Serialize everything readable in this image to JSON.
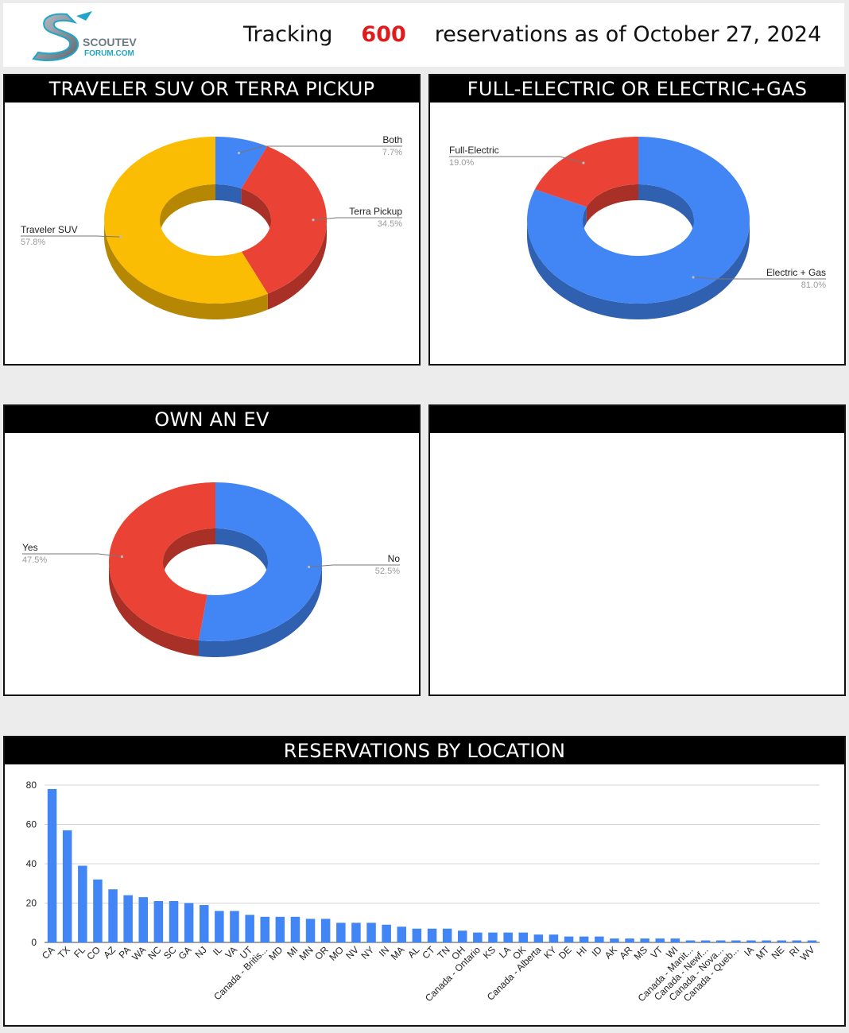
{
  "header": {
    "logo_text_top": "SCOUTEV",
    "logo_text_bottom": "FORUM.COM",
    "prefix": "Tracking",
    "count": "600",
    "suffix": "reservations as of October 27, 2024"
  },
  "colors": {
    "blue": "#4285f4",
    "red": "#ea4335",
    "yellow": "#fbbc04"
  },
  "chart_data": [
    {
      "type": "pie",
      "title": "TRAVELER SUV OR TERRA PICKUP",
      "slices": [
        {
          "label": "Both",
          "value": 7.7,
          "pct": "7.7%",
          "color": "#4285f4"
        },
        {
          "label": "Terra Pickup",
          "value": 34.5,
          "pct": "34.5%",
          "color": "#ea4335"
        },
        {
          "label": "Traveler SUV",
          "value": 57.8,
          "pct": "57.8%",
          "color": "#fbbc04"
        }
      ]
    },
    {
      "type": "pie",
      "title": "FULL-ELECTRIC OR ELECTRIC+GAS",
      "slices": [
        {
          "label": "Electric + Gas",
          "value": 81.0,
          "pct": "81.0%",
          "color": "#4285f4"
        },
        {
          "label": "Full-Electric",
          "value": 19.0,
          "pct": "19.0%",
          "color": "#ea4335"
        }
      ]
    },
    {
      "type": "pie",
      "title": "OWN AN EV",
      "slices": [
        {
          "label": "No",
          "value": 52.5,
          "pct": "52.5%",
          "color": "#4285f4"
        },
        {
          "label": "Yes",
          "value": 47.5,
          "pct": "47.5%",
          "color": "#ea4335"
        }
      ]
    },
    {
      "type": "bar",
      "title": "RESERVATIONS BY LOCATION",
      "ylim": [
        0,
        80
      ],
      "yticks": [
        0,
        20,
        40,
        60,
        80
      ],
      "grid": true,
      "color": "#4285f4",
      "categories": [
        "CA",
        "TX",
        "FL",
        "CO",
        "AZ",
        "PA",
        "WA",
        "NC",
        "SC",
        "GA",
        "NJ",
        "IL",
        "VA",
        "UT",
        "Canada - Britis...",
        "MD",
        "MI",
        "MN",
        "OR",
        "MO",
        "NV",
        "NY",
        "IN",
        "MA",
        "AL",
        "CT",
        "TN",
        "OH",
        "Canada - Ontario",
        "KS",
        "LA",
        "OK",
        "Canada - Alberta",
        "KY",
        "DE",
        "HI",
        "ID",
        "AK",
        "AR",
        "MS",
        "VT",
        "WI",
        "Canada - Manit...",
        "Canada - Newf...",
        "Canada - Nova...",
        "Canada - Queb...",
        "IA",
        "MT",
        "NE",
        "RI",
        "WV"
      ],
      "values": [
        78,
        57,
        39,
        32,
        27,
        24,
        23,
        21,
        21,
        20,
        19,
        16,
        16,
        14,
        13,
        13,
        13,
        12,
        12,
        10,
        10,
        10,
        9,
        8,
        7,
        7,
        7,
        6,
        5,
        5,
        5,
        5,
        4,
        4,
        3,
        3,
        3,
        2,
        2,
        2,
        2,
        2,
        1,
        1,
        1,
        1,
        1,
        1,
        1,
        1,
        1
      ]
    }
  ]
}
